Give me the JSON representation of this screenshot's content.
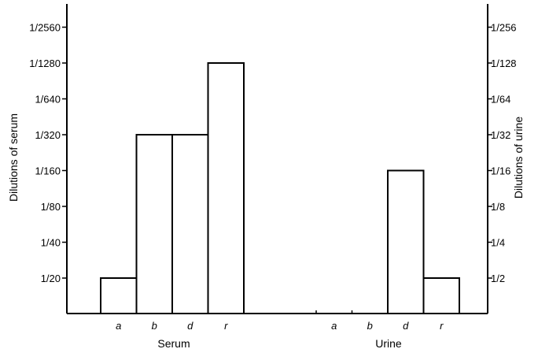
{
  "chart_data": {
    "type": "bar",
    "title": "",
    "left_axis": {
      "label": "Dilutions of serum",
      "ticks": [
        "1/20",
        "1/40",
        "1/80",
        "1/160",
        "1/320",
        "1/640",
        "1/1280",
        "1/2560"
      ]
    },
    "right_axis": {
      "label": "Dilutions of urine",
      "ticks": [
        "1/2",
        "1/4",
        "1/8",
        "1/16",
        "1/32",
        "1/64",
        "1/128",
        "1/256"
      ]
    },
    "groups": [
      {
        "name": "Serum",
        "categories": [
          "a",
          "b",
          "d",
          "r"
        ],
        "values": [
          "1/20",
          "1/320",
          "1/320",
          "1/1280"
        ]
      },
      {
        "name": "Urine",
        "categories": [
          "a",
          "b",
          "d",
          "r"
        ],
        "values": [
          null,
          null,
          "1/16",
          "1/2"
        ]
      }
    ],
    "grid": false,
    "legend": "none"
  }
}
